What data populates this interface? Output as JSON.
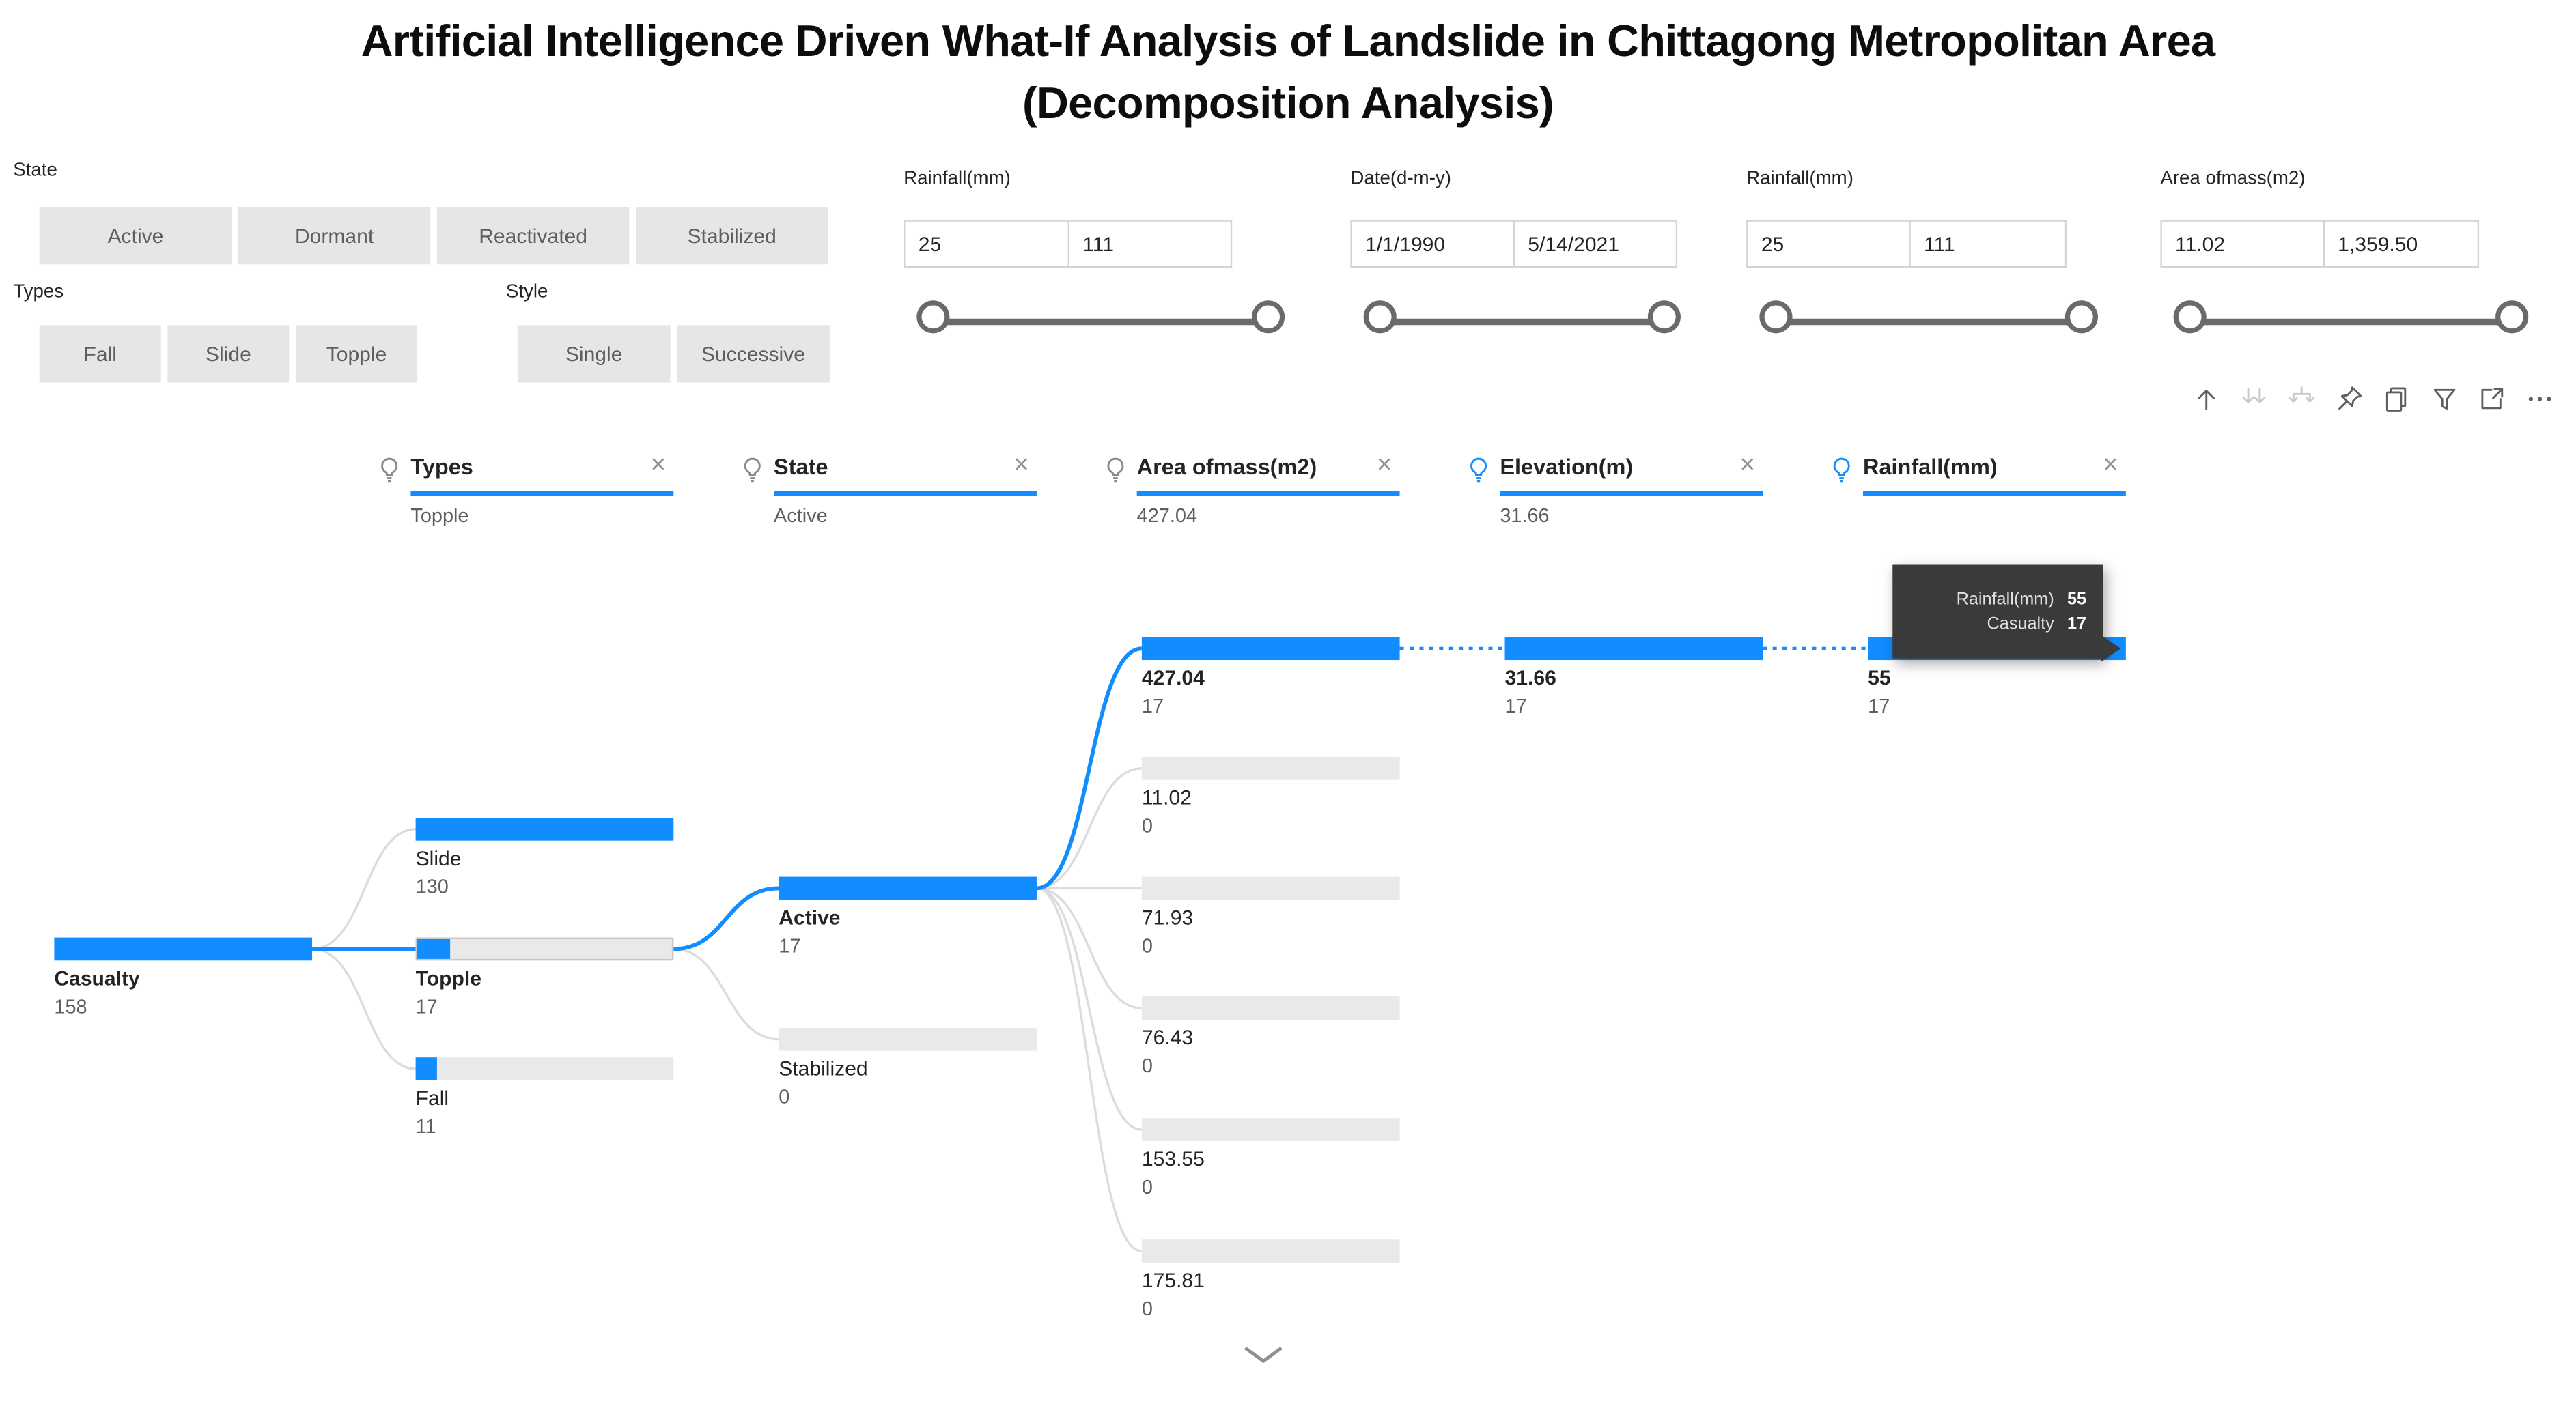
{
  "title": {
    "line1": "Artificial Intelligence Driven What-If Analysis of Landslide in Chittagong Metropolitan Area",
    "line2": "(Decomposition Analysis)"
  },
  "slicers": {
    "state": {
      "label": "State",
      "options": [
        "Active",
        "Dormant",
        "Reactivated",
        "Stabilized"
      ]
    },
    "types": {
      "label": "Types",
      "options": [
        "Fall",
        "Slide",
        "Topple"
      ]
    },
    "style": {
      "label": "Style",
      "options": [
        "Single",
        "Successive"
      ]
    }
  },
  "sliders": [
    {
      "label": "Rainfall(mm)",
      "min": "25",
      "max": "111"
    },
    {
      "label": "Date(d-m-y)",
      "min": "1/1/1990",
      "max": "5/14/2021"
    },
    {
      "label": "Rainfall(mm)",
      "min": "25",
      "max": "111"
    },
    {
      "label": "Area ofmass(m2)",
      "min": "11.02",
      "max": "1,359.50"
    }
  ],
  "toolbar": {
    "icons": [
      {
        "name": "drill-up",
        "disabled": false
      },
      {
        "name": "drill-down",
        "disabled": true
      },
      {
        "name": "expand-next-level",
        "disabled": true
      },
      {
        "name": "pin",
        "disabled": false
      },
      {
        "name": "copy",
        "disabled": false
      },
      {
        "name": "filter",
        "disabled": false
      },
      {
        "name": "focus-mode",
        "disabled": false
      },
      {
        "name": "more-options",
        "disabled": false
      }
    ]
  },
  "tree": {
    "levels": [
      {
        "label": "Types",
        "selected": "Topple",
        "bulb": "gray"
      },
      {
        "label": "State",
        "selected": "Active",
        "bulb": "gray"
      },
      {
        "label": "Area ofmass(m2)",
        "selected": "427.04",
        "bulb": "gray"
      },
      {
        "label": "Elevation(m)",
        "selected": "31.66",
        "bulb": "blue"
      },
      {
        "label": "Rainfall(mm)",
        "selected": "",
        "bulb": "blue"
      }
    ],
    "nodes": {
      "casualty": {
        "label": "Casualty",
        "value": "158",
        "fill": 1,
        "bold": true,
        "bordered": false
      },
      "slide": {
        "label": "Slide",
        "value": "130",
        "fill": 1,
        "bold": false,
        "bordered": false
      },
      "topple": {
        "label": "Topple",
        "value": "17",
        "fill": 0.131,
        "bold": true,
        "bordered": true
      },
      "fall": {
        "label": "Fall",
        "value": "11",
        "fill": 0.085,
        "bold": false,
        "bordered": false
      },
      "active": {
        "label": "Active",
        "value": "17",
        "fill": 1,
        "bold": true,
        "bordered": false
      },
      "stabilized": {
        "label": "Stabilized",
        "value": "0",
        "fill": 0,
        "bold": false,
        "bordered": false
      },
      "area427": {
        "label": "427.04",
        "value": "17",
        "fill": 1,
        "bold": true,
        "bordered": false
      },
      "area11": {
        "label": "11.02",
        "value": "0",
        "fill": 0,
        "bold": false,
        "bordered": false
      },
      "area71": {
        "label": "71.93",
        "value": "0",
        "fill": 0,
        "bold": false,
        "bordered": false
      },
      "area76": {
        "label": "76.43",
        "value": "0",
        "fill": 0,
        "bold": false,
        "bordered": false
      },
      "area153": {
        "label": "153.55",
        "value": "0",
        "fill": 0,
        "bold": false,
        "bordered": false
      },
      "area175": {
        "label": "175.81",
        "value": "0",
        "fill": 0,
        "bold": false,
        "bordered": false
      },
      "elev31": {
        "label": "31.66",
        "value": "17",
        "fill": 1,
        "bold": true,
        "bordered": false
      },
      "rain55": {
        "label": "55",
        "value": "17",
        "fill": 1,
        "bold": true,
        "bordered": false
      }
    }
  },
  "tooltip": {
    "rows": [
      {
        "label": "Rainfall(mm)",
        "value": "55"
      },
      {
        "label": "Casualty",
        "value": "17"
      }
    ]
  },
  "colors": {
    "accent": "#118DFF",
    "bar_gray": "#e9e9e9",
    "tooltip_bg": "#3a3a3a"
  }
}
